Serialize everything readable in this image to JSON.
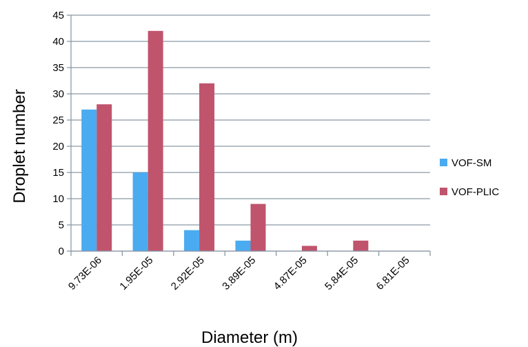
{
  "chart_data": {
    "type": "bar",
    "xlabel": "Diameter (m)",
    "ylabel": "Droplet number",
    "ylim": [
      0,
      45
    ],
    "y_ticks": [
      0,
      5,
      10,
      15,
      20,
      25,
      30,
      35,
      40,
      45
    ],
    "grid": "horizontal",
    "legend_position": "right",
    "categories": [
      "9.73E-06",
      "1.95E-05",
      "2.92E-05",
      "3.89E-05",
      "4.87E-05",
      "5.84E-05",
      "6.81E-05"
    ],
    "series": [
      {
        "name": "VOF-SM",
        "color": "#4aabf0",
        "values": [
          27,
          15,
          4,
          2,
          0,
          0,
          0
        ]
      },
      {
        "name": "VOF-PLIC",
        "color": "#c0546c",
        "values": [
          28,
          42,
          32,
          9,
          1,
          2,
          0
        ]
      }
    ]
  }
}
